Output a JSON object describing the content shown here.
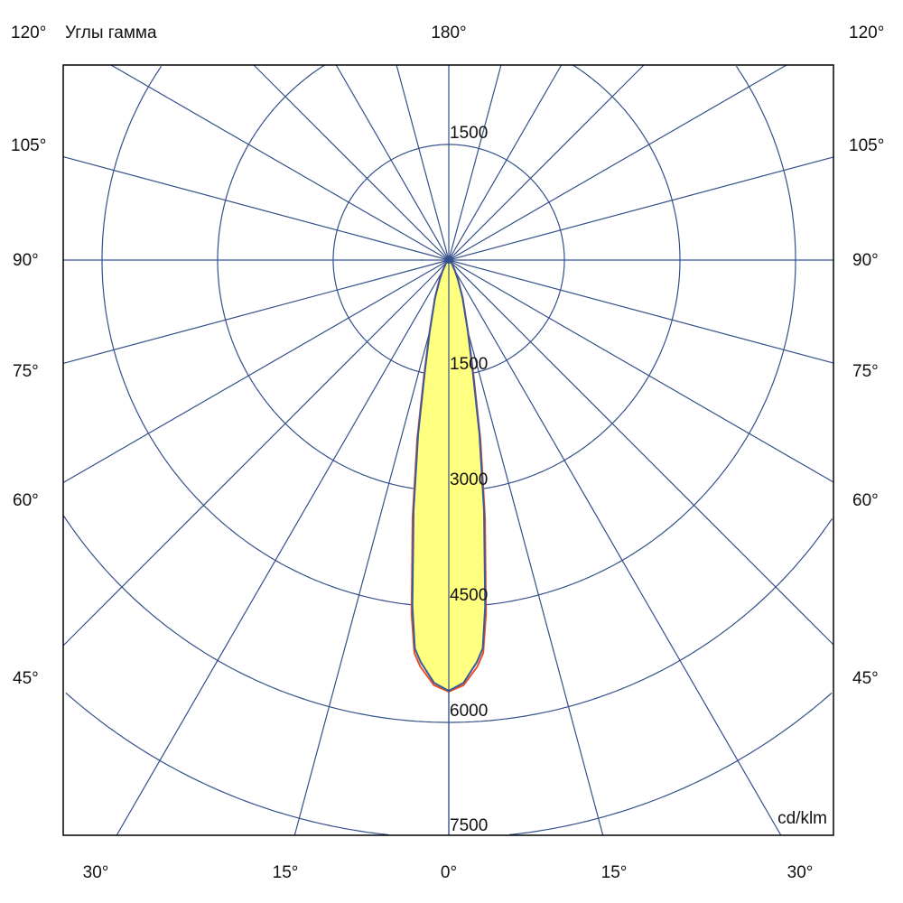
{
  "header": {
    "corner_left": "120°",
    "corner_right": "120°",
    "axis_title": "Углы гамма",
    "top_angle": "180°"
  },
  "chart_data": {
    "type": "polar",
    "title": "",
    "unit": "cd/klm",
    "angle_axis_label": "Углы гамма",
    "radial_ticks": [
      1500,
      3000,
      4500,
      6000,
      7500
    ],
    "radial_tick_labels": [
      "1500",
      "3000",
      "4500",
      "6000",
      "7500"
    ],
    "top_radial_label": "1500",
    "radial_range": [
      0,
      7500
    ],
    "angle_grid_step_deg": 15,
    "side_angle_labels": [
      "105°",
      "90°",
      "75°",
      "60°",
      "45°"
    ],
    "bottom_angle_labels": [
      "30°",
      "15°",
      "0°",
      "15°",
      "30°"
    ],
    "grid": true,
    "colors": {
      "grid": "#34508a",
      "fill": "#ffff80",
      "series_a": "#e8502a",
      "series_b": "#3a5a9a",
      "frame": "#000000"
    },
    "gamma_deg": [
      0,
      2,
      4,
      5,
      6,
      8,
      10,
      12,
      15,
      20,
      25,
      30,
      40,
      50,
      60,
      90
    ],
    "series": [
      {
        "color": "#e8502a",
        "values": [
          5600,
          5520,
          5290,
          5120,
          4620,
          3380,
          2360,
          1560,
          970,
          530,
          290,
          165,
          60,
          20,
          0,
          0
        ]
      },
      {
        "color": "#3a5a9a",
        "values": [
          5590,
          5490,
          5230,
          5060,
          4520,
          3280,
          2290,
          1510,
          950,
          520,
          280,
          160,
          60,
          20,
          0,
          0
        ]
      }
    ]
  }
}
